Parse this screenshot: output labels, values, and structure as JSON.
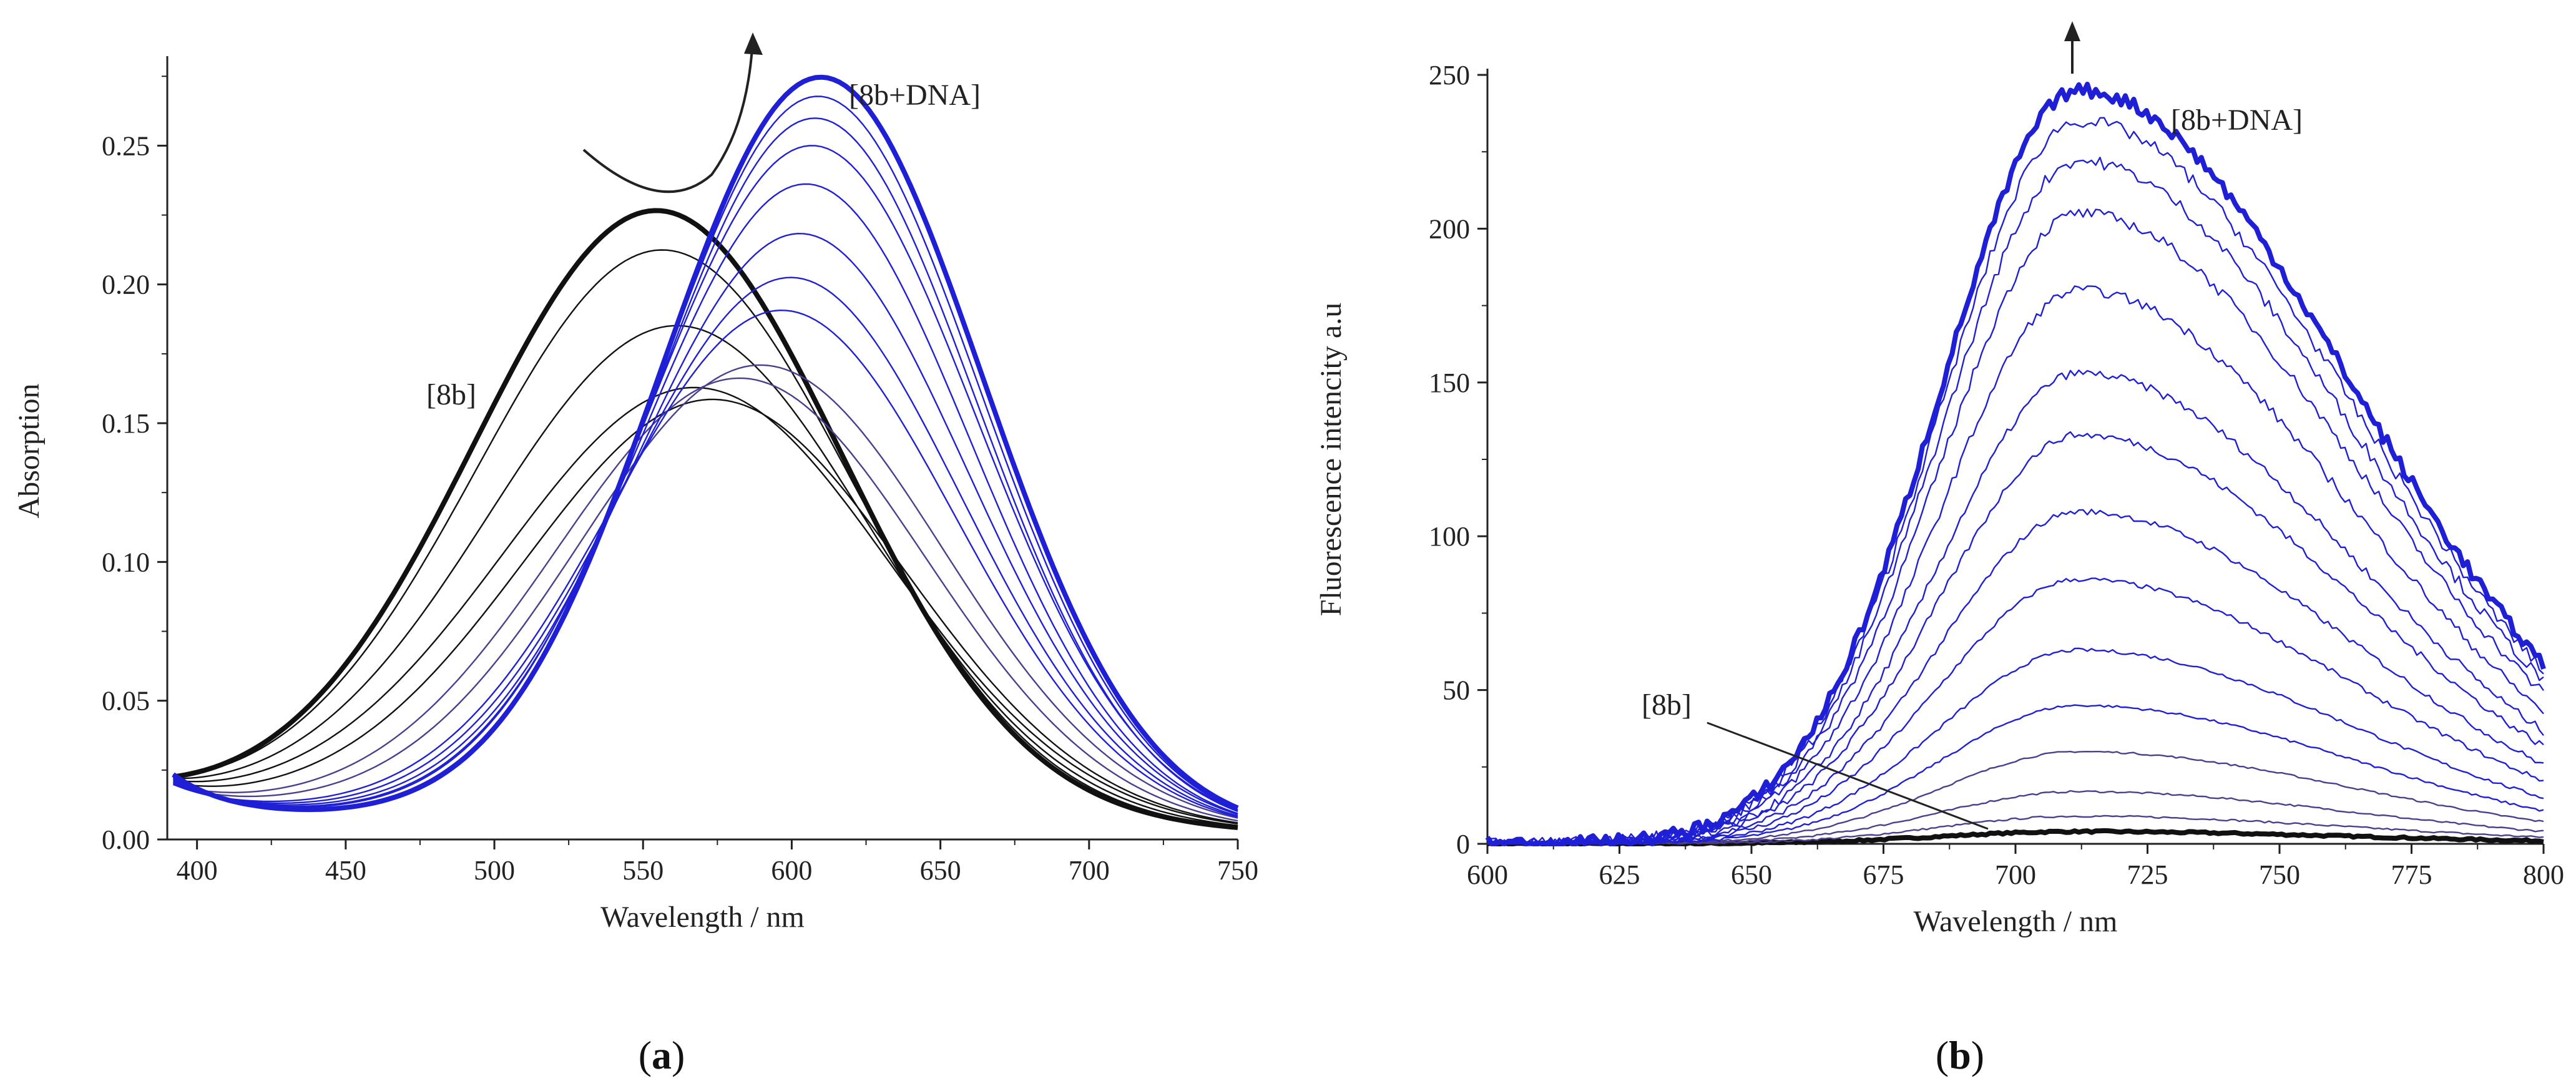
{
  "colors": {
    "black": "#111111",
    "blue": "#1f1fd6",
    "mid": "#4a3f8c",
    "axis": "#222222"
  },
  "panels": [
    {
      "label_open": "(",
      "label_letter": "a",
      "label_close": ")"
    },
    {
      "label_open": "(",
      "label_letter": "b",
      "label_close": ")"
    }
  ],
  "chart_data": [
    {
      "type": "line",
      "panel": "a",
      "title": "",
      "xlabel": "Wavelength / nm",
      "ylabel": "Absorption",
      "xlim": [
        390,
        750
      ],
      "ylim": [
        0,
        0.28
      ],
      "xticks": [
        400,
        450,
        500,
        550,
        600,
        650,
        700,
        750
      ],
      "xtick_labels": [
        "400",
        "450",
        "500",
        "550",
        "600",
        "650",
        "700",
        "750"
      ],
      "yticks": [
        0,
        0.05,
        0.1,
        0.15,
        0.2,
        0.25
      ],
      "ytick_labels": [
        "0.00",
        "0.05",
        "0.10",
        "0.15",
        "0.20",
        "0.25"
      ],
      "annotations": {
        "start": "[8b]",
        "end": "[8b+DNA]"
      },
      "series": [
        {
          "name": "[8b]",
          "peak_nm": 555,
          "peak": 0.22,
          "width_nm": 62,
          "color": "black",
          "bold": true
        },
        {
          "name": "t1",
          "peak_nm": 557,
          "peak": 0.206,
          "width_nm": 63,
          "color": "black",
          "bold": false
        },
        {
          "name": "t2",
          "peak_nm": 562,
          "peak": 0.179,
          "width_nm": 64,
          "color": "black",
          "bold": false
        },
        {
          "name": "t3",
          "peak_nm": 568,
          "peak": 0.157,
          "width_nm": 65,
          "color": "black",
          "bold": false
        },
        {
          "name": "t4",
          "peak_nm": 574,
          "peak": 0.153,
          "width_nm": 64,
          "color": "black",
          "bold": false
        },
        {
          "name": "t5",
          "peak_nm": 583,
          "peak": 0.161,
          "width_nm": 62,
          "color": "mid",
          "bold": false
        },
        {
          "name": "t6",
          "peak_nm": 590,
          "peak": 0.166,
          "width_nm": 61,
          "color": "mid",
          "bold": false
        },
        {
          "name": "t7",
          "peak_nm": 597,
          "peak": 0.186,
          "width_nm": 58,
          "color": "blue",
          "bold": false
        },
        {
          "name": "t8",
          "peak_nm": 600,
          "peak": 0.198,
          "width_nm": 57,
          "color": "blue",
          "bold": false
        },
        {
          "name": "t9",
          "peak_nm": 603,
          "peak": 0.214,
          "width_nm": 56,
          "color": "blue",
          "bold": false
        },
        {
          "name": "t10",
          "peak_nm": 605,
          "peak": 0.232,
          "width_nm": 55,
          "color": "blue",
          "bold": false
        },
        {
          "name": "t11",
          "peak_nm": 607,
          "peak": 0.246,
          "width_nm": 55,
          "color": "blue",
          "bold": false
        },
        {
          "name": "t12",
          "peak_nm": 608,
          "peak": 0.256,
          "width_nm": 54,
          "color": "blue",
          "bold": false
        },
        {
          "name": "t13",
          "peak_nm": 609,
          "peak": 0.264,
          "width_nm": 54,
          "color": "blue",
          "bold": false
        },
        {
          "name": "[8b+DNA]",
          "peak_nm": 610,
          "peak": 0.271,
          "width_nm": 54,
          "color": "blue",
          "bold": true
        }
      ]
    },
    {
      "type": "line",
      "panel": "b",
      "title": "",
      "xlabel": "Wavelength / nm",
      "ylabel": "Fluorescence intencity a.u",
      "xlim": [
        600,
        800
      ],
      "ylim": [
        0,
        250
      ],
      "xticks": [
        600,
        625,
        650,
        675,
        700,
        725,
        750,
        775,
        800
      ],
      "xtick_labels": [
        "600",
        "625",
        "650",
        "675",
        "700",
        "725",
        "750",
        "775",
        "800"
      ],
      "yticks": [
        0,
        50,
        100,
        150,
        200,
        250
      ],
      "ytick_labels": [
        "0",
        "50",
        "100",
        "150",
        "200",
        "250"
      ],
      "annotations": {
        "start": "[8b]",
        "end": "[8b+DNA]"
      },
      "peak_nm": 712,
      "series_peaks": [
        4,
        9,
        17,
        30,
        45,
        63,
        86,
        108,
        133,
        153,
        180,
        205,
        222,
        235,
        245
      ],
      "series_names": [
        "[8b]",
        "t1",
        "t2",
        "t3",
        "t4",
        "t5",
        "t6",
        "t7",
        "t8",
        "t9",
        "t10",
        "t11",
        "t12",
        "t13",
        "[8b+DNA]"
      ]
    }
  ]
}
